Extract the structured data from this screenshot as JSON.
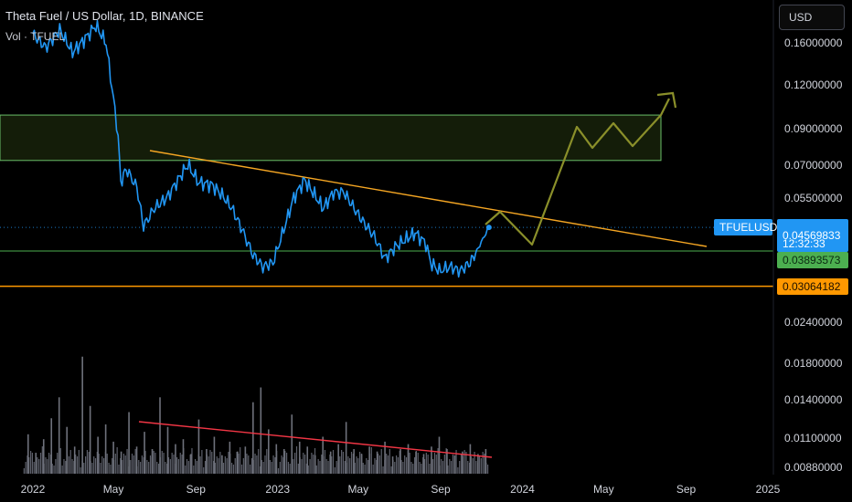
{
  "header": {
    "title": "Theta Fuel / US Dollar, 1D, BINANCE",
    "volume_label": "Vol · TFUEL",
    "currency_button": "USD"
  },
  "price_tags": {
    "symbol": "TFUELUSD",
    "last_price": "0.04569833",
    "countdown": "12:32:33",
    "green_level": "0.03893573",
    "orange_level": "0.03064182"
  },
  "colors": {
    "price_line": "#2196f3",
    "last_price_tag": "#2196f3",
    "green_level": "#4caf50",
    "orange_level": "#ff9800",
    "trendline": "#f5a623",
    "volume_trendline": "#f23645",
    "projection": "#8a8f2a",
    "zone": "#6abf69"
  },
  "chart_data": {
    "type": "line",
    "y_scale": "log",
    "x_axis": {
      "ticks": [
        "2022",
        "May",
        "Sep",
        "2023",
        "May",
        "Sep",
        "2024",
        "May",
        "Sep",
        "2025"
      ],
      "tick_dates": [
        "2022-01-01",
        "2022-05-01",
        "2022-09-01",
        "2023-01-01",
        "2023-05-01",
        "2023-09-01",
        "2024-01-01",
        "2024-05-01",
        "2024-09-01",
        "2025-01-01"
      ],
      "range": [
        "2021-12-18",
        "2025-01-08"
      ]
    },
    "y_axis": {
      "ticks": [
        "0.16000000",
        "0.12000000",
        "0.09000000",
        "0.07000000",
        "0.05500000",
        "0.02400000",
        "0.01800000",
        "0.01400000",
        "0.01100000",
        "0.00880000"
      ]
    },
    "series": [
      {
        "values": [
          [
            "2022-01-01",
            0.17
          ],
          [
            "2022-01-20",
            0.155
          ],
          [
            "2022-02-10",
            0.175
          ],
          [
            "2022-03-01",
            0.15
          ],
          [
            "2022-03-20",
            0.165
          ],
          [
            "2022-04-05",
            0.18
          ],
          [
            "2022-04-20",
            0.16
          ],
          [
            "2022-05-01",
            0.11
          ],
          [
            "2022-05-08",
            0.085
          ],
          [
            "2022-05-12",
            0.062
          ],
          [
            "2022-05-20",
            0.068
          ],
          [
            "2022-06-05",
            0.06
          ],
          [
            "2022-06-15",
            0.046
          ],
          [
            "2022-07-01",
            0.052
          ],
          [
            "2022-07-20",
            0.056
          ],
          [
            "2022-08-05",
            0.063
          ],
          [
            "2022-08-20",
            0.07
          ],
          [
            "2022-09-05",
            0.062
          ],
          [
            "2022-09-25",
            0.061
          ],
          [
            "2022-10-10",
            0.057
          ],
          [
            "2022-10-25",
            0.052
          ],
          [
            "2022-11-09",
            0.045
          ],
          [
            "2022-11-25",
            0.038
          ],
          [
            "2022-12-10",
            0.035
          ],
          [
            "2022-12-25",
            0.036
          ],
          [
            "2023-01-10",
            0.045
          ],
          [
            "2023-01-25",
            0.056
          ],
          [
            "2023-02-10",
            0.063
          ],
          [
            "2023-02-25",
            0.057
          ],
          [
            "2023-03-10",
            0.052
          ],
          [
            "2023-03-25",
            0.058
          ],
          [
            "2023-04-10",
            0.058
          ],
          [
            "2023-04-25",
            0.052
          ],
          [
            "2023-05-10",
            0.047
          ],
          [
            "2023-05-25",
            0.043
          ],
          [
            "2023-06-10",
            0.037
          ],
          [
            "2023-06-25",
            0.04
          ],
          [
            "2023-07-10",
            0.042
          ],
          [
            "2023-07-25",
            0.044
          ],
          [
            "2023-08-10",
            0.041
          ],
          [
            "2023-08-17",
            0.036
          ],
          [
            "2023-08-30",
            0.034
          ],
          [
            "2023-09-15",
            0.035
          ],
          [
            "2023-09-30",
            0.034
          ],
          [
            "2023-10-15",
            0.036
          ],
          [
            "2023-10-25",
            0.039
          ],
          [
            "2023-11-05",
            0.043
          ],
          [
            "2023-11-12",
            0.04569833
          ]
        ]
      }
    ],
    "volume_series": [
      0.32,
      0.17,
      0.28,
      0.45,
      0.62,
      0.38,
      0.22,
      0.95,
      0.55,
      0.3,
      0.4,
      0.26,
      0.18,
      0.5,
      0.22,
      0.34,
      0.2,
      0.62,
      0.38,
      0.24,
      0.28,
      0.16,
      0.44,
      0.2,
      0.3,
      0.15,
      0.26,
      0.18,
      0.22,
      0.58,
      0.7,
      0.36,
      0.24,
      0.2,
      0.48,
      0.26,
      0.22,
      0.15,
      0.3,
      0.18,
      0.24,
      0.42,
      0.2,
      0.16,
      0.22,
      0.18,
      0.26,
      0.14,
      0.2,
      0.24,
      0.18,
      0.16,
      0.22,
      0.3,
      0.2,
      0.15,
      0.18,
      0.24,
      0.16,
      0.2
    ]
  }
}
